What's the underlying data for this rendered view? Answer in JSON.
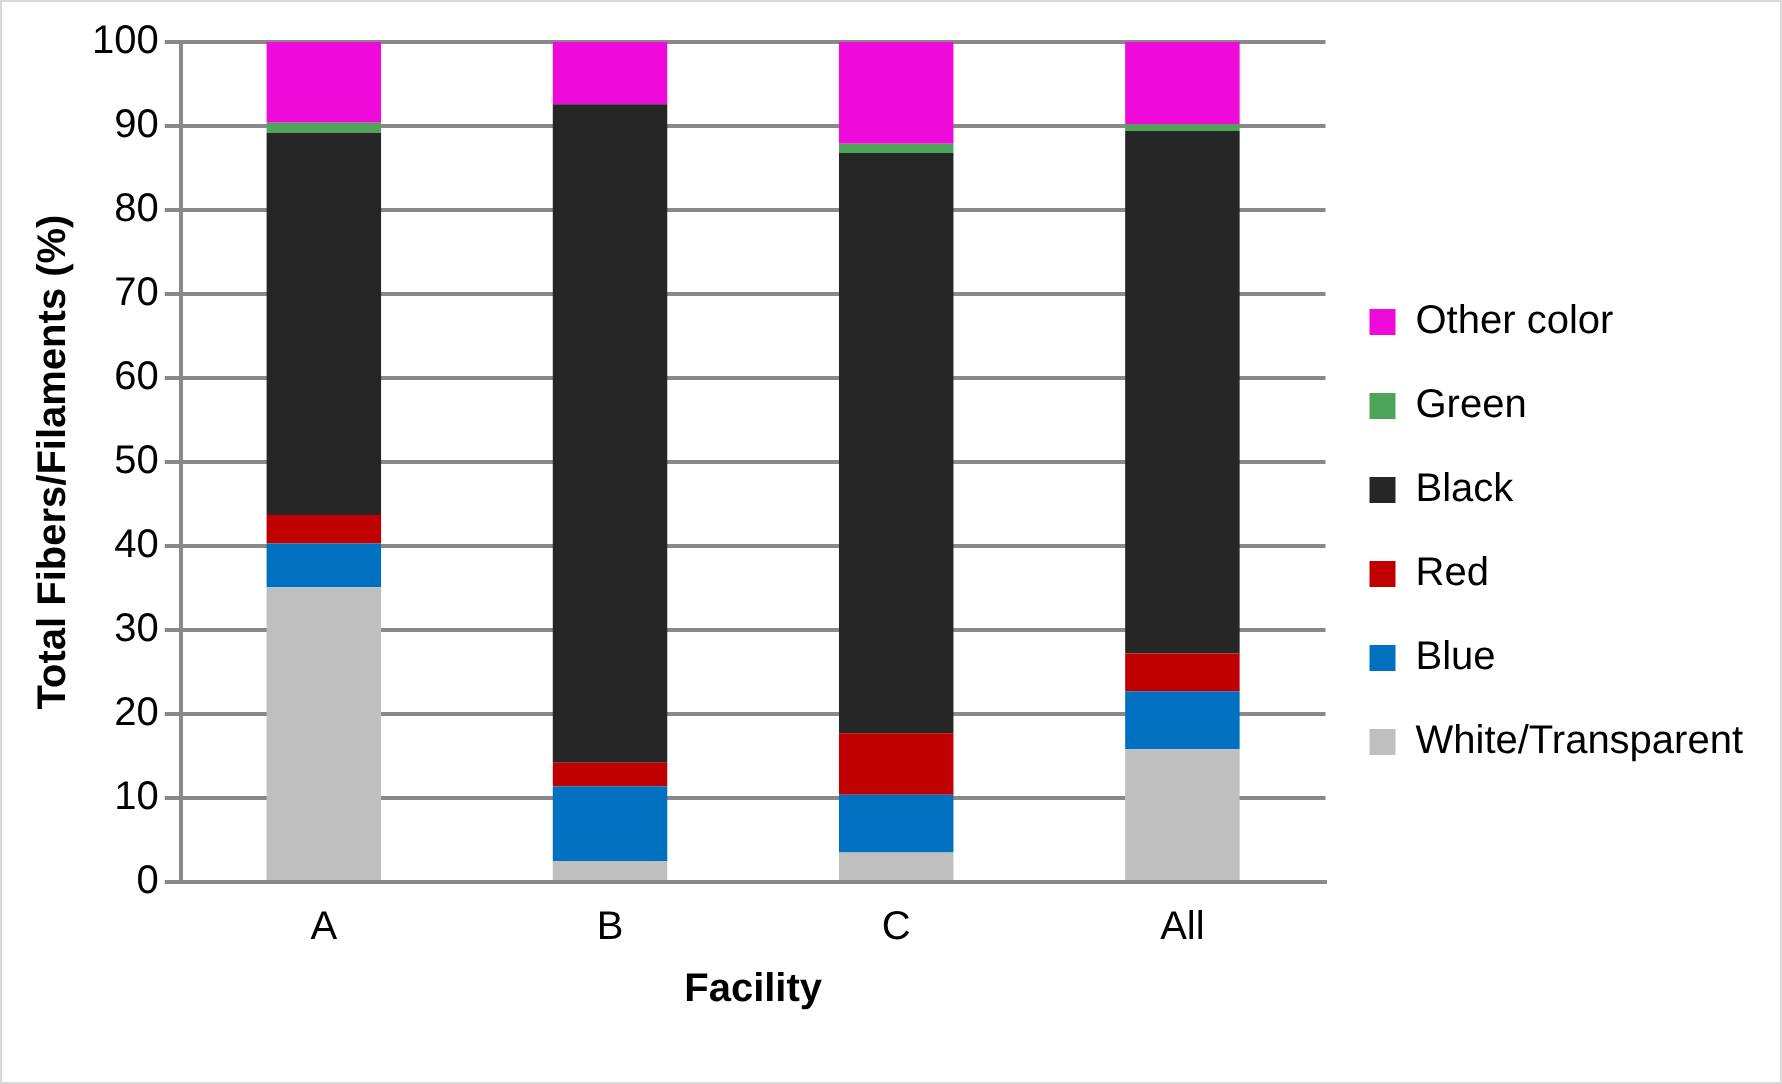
{
  "chart_data": {
    "type": "bar",
    "stacked": true,
    "xlabel": "Facility",
    "ylabel": "Total Fibers/Filaments (%)",
    "categories": [
      "A",
      "B",
      "C",
      "All"
    ],
    "series": [
      {
        "name": "White/Transparent",
        "color": "#bfbfbf",
        "values": [
          35.1,
          2.5,
          3.5,
          15.8
        ]
      },
      {
        "name": "Blue",
        "color": "#0070c0",
        "values": [
          5.2,
          8.9,
          6.9,
          6.9
        ]
      },
      {
        "name": "Red",
        "color": "#c00000",
        "values": [
          3.4,
          2.8,
          7.3,
          4.5
        ]
      },
      {
        "name": "Black",
        "color": "#262626",
        "values": [
          45.5,
          78.4,
          69.1,
          62.2
        ]
      },
      {
        "name": "Green",
        "color": "#4ea55a",
        "values": [
          1.2,
          0,
          1.1,
          0.8
        ]
      },
      {
        "name": "Other color",
        "color": "#ee0ad8",
        "values": [
          9.6,
          7.4,
          12.1,
          9.8
        ]
      }
    ],
    "ylim": [
      0,
      100
    ],
    "yticks": [
      0,
      10,
      20,
      30,
      40,
      50,
      60,
      70,
      80,
      90,
      100
    ],
    "grid": "y",
    "legend": "right"
  }
}
